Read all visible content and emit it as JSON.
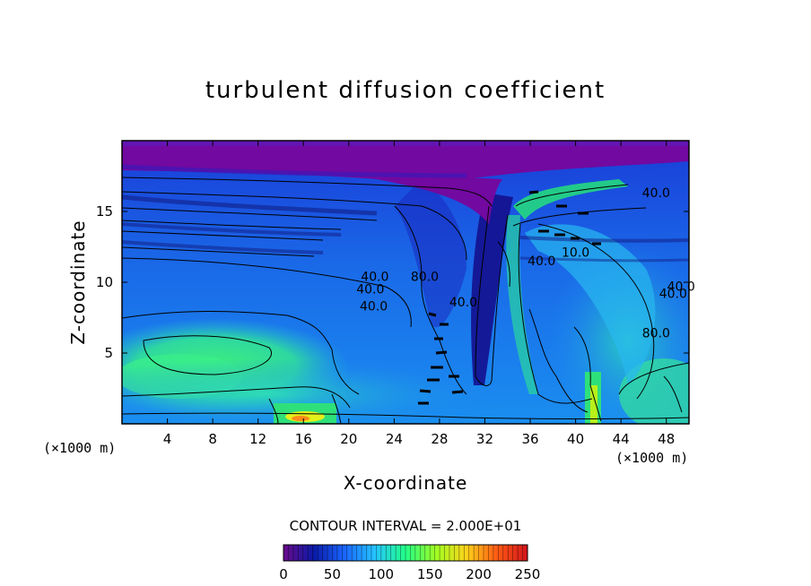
{
  "chart_data": {
    "type": "heatmap",
    "title": "turbulent diffusion coefficient",
    "xlabel": "X-coordinate",
    "ylabel": "Z-coordinate",
    "x_units": "(×1000 m)",
    "y_units": "(×1000 m)",
    "xlim": [
      0,
      50
    ],
    "ylim": [
      0,
      20
    ],
    "x_ticks": [
      4,
      8,
      12,
      16,
      20,
      24,
      28,
      32,
      36,
      40,
      44,
      48
    ],
    "y_ticks": [
      5,
      10,
      15
    ],
    "contour_interval_text": "CONTOUR INTERVAL = 2.000E+01",
    "colorbar": {
      "min": 0,
      "max": 250,
      "ticks": [
        0,
        50,
        100,
        150,
        200,
        250
      ],
      "colors": [
        "#6a0a8a",
        "#0a1aa8",
        "#1a66ff",
        "#24c4ff",
        "#22ff88",
        "#a0ff22",
        "#ffd21a",
        "#ff5a14",
        "#d2141a"
      ]
    },
    "contour_labels": [
      {
        "text": "40.0",
        "x": 22.2,
        "y": 8.0
      },
      {
        "text": "40.0",
        "x": 21.9,
        "y": 9.2
      },
      {
        "text": "40.0",
        "x": 22.3,
        "y": 10.1
      },
      {
        "text": "40.0",
        "x": 30.1,
        "y": 8.3
      },
      {
        "text": "40.0",
        "x": 37.0,
        "y": 11.2
      },
      {
        "text": "40.0",
        "x": 47.1,
        "y": 16.0
      },
      {
        "text": "40.0",
        "x": 48.6,
        "y": 8.9
      },
      {
        "text": "40.0",
        "x": 49.3,
        "y": 9.4
      },
      {
        "text": "10.0",
        "x": 40.0,
        "y": 11.8
      },
      {
        "text": "80.0",
        "x": 26.7,
        "y": 10.1
      },
      {
        "text": "80.0",
        "x": 47.1,
        "y": 6.1
      }
    ]
  }
}
